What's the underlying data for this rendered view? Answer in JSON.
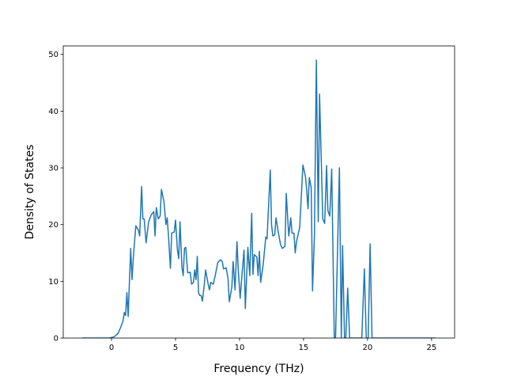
{
  "chart_data": {
    "type": "line",
    "x_label": "Frequency (THz)",
    "y_label": "Density of States",
    "color": "#1f77b4",
    "xlim": [
      -3.77,
      26.8
    ],
    "ylim": [
      0,
      51.5
    ],
    "xticks": [
      0,
      5,
      10,
      15,
      20,
      25
    ],
    "yticks": [
      0,
      10,
      20,
      30,
      40,
      50
    ],
    "x": [
      -2.3,
      -0.2,
      0.2,
      0.5,
      0.7,
      0.9,
      1.0,
      1.1,
      1.2,
      1.3,
      1.4,
      1.5,
      1.6,
      1.7,
      1.8,
      1.9,
      2.1,
      2.2,
      2.35,
      2.45,
      2.55,
      2.7,
      2.9,
      3.1,
      3.3,
      3.4,
      3.5,
      3.65,
      3.8,
      3.9,
      4.1,
      4.25,
      4.35,
      4.45,
      4.6,
      4.7,
      4.9,
      5.0,
      5.15,
      5.25,
      5.35,
      5.5,
      5.6,
      5.7,
      5.8,
      5.95,
      6.15,
      6.25,
      6.4,
      6.5,
      6.6,
      6.7,
      6.8,
      6.9,
      7.0,
      7.1,
      7.25,
      7.35,
      7.55,
      7.65,
      7.75,
      7.95,
      8.1,
      8.3,
      8.5,
      8.65,
      8.75,
      8.95,
      9.1,
      9.2,
      9.4,
      9.5,
      9.65,
      9.8,
      9.9,
      10.05,
      10.15,
      10.35,
      10.45,
      10.65,
      10.8,
      10.95,
      11.05,
      11.15,
      11.35,
      11.45,
      11.55,
      11.65,
      11.85,
      12.05,
      12.15,
      12.4,
      12.5,
      12.6,
      12.75,
      12.85,
      13.0,
      13.2,
      13.35,
      13.55,
      13.65,
      13.75,
      13.85,
      14.0,
      14.1,
      14.25,
      14.35,
      14.45,
      14.55,
      14.7,
      14.95,
      15.15,
      15.25,
      15.35,
      15.45,
      15.6,
      15.7,
      15.85,
      16.0,
      16.1,
      16.15,
      16.25,
      16.4,
      16.5,
      16.65,
      16.8,
      16.9,
      17.05,
      17.2,
      17.3,
      17.4,
      17.5,
      17.8,
      17.95,
      18.05,
      18.2,
      18.3,
      18.45,
      18.6,
      19.55,
      19.75,
      19.9,
      20.05,
      20.2,
      20.35,
      25.3
    ],
    "values": [
      0,
      0,
      0.2,
      0.8,
      1.8,
      3,
      4.5,
      4,
      8,
      3.8,
      10,
      15.8,
      10.3,
      14,
      17,
      19.8,
      19,
      18,
      26.7,
      21,
      21,
      16.8,
      20.5,
      21.7,
      22.3,
      18,
      23,
      21,
      21.5,
      26.2,
      24,
      20,
      21.2,
      18,
      12.3,
      18.5,
      18.7,
      20.8,
      15.5,
      14,
      20.5,
      12.5,
      11,
      15.8,
      16,
      11.5,
      11.6,
      9.5,
      9.8,
      12,
      10.3,
      14.4,
      8,
      7.5,
      7.5,
      6.5,
      9.5,
      12,
      9.5,
      8.5,
      9.8,
      9.5,
      11,
      13.3,
      13.8,
      13.5,
      12.2,
      12.4,
      10.5,
      6.4,
      9,
      13.5,
      8.5,
      17,
      12,
      7,
      10,
      15.5,
      5.2,
      16,
      11,
      22,
      11.2,
      14.7,
      14.3,
      11,
      15.3,
      9.8,
      13,
      17.8,
      17.5,
      29.6,
      20,
      18,
      18.2,
      21.2,
      19,
      16.5,
      15.8,
      16.2,
      25.5,
      21.5,
      18,
      21.2,
      18.5,
      18.5,
      15,
      17,
      18,
      19.5,
      30.5,
      28.5,
      26,
      22.8,
      28.3,
      26.5,
      8.3,
      18,
      49,
      30,
      20.5,
      43,
      30,
      21,
      20.2,
      30.4,
      22.5,
      21.5,
      29.8,
      15,
      0,
      0,
      30,
      0,
      16.3,
      0,
      0,
      8.8,
      0,
      0,
      12.2,
      0,
      0,
      16.6,
      0,
      0
    ]
  }
}
